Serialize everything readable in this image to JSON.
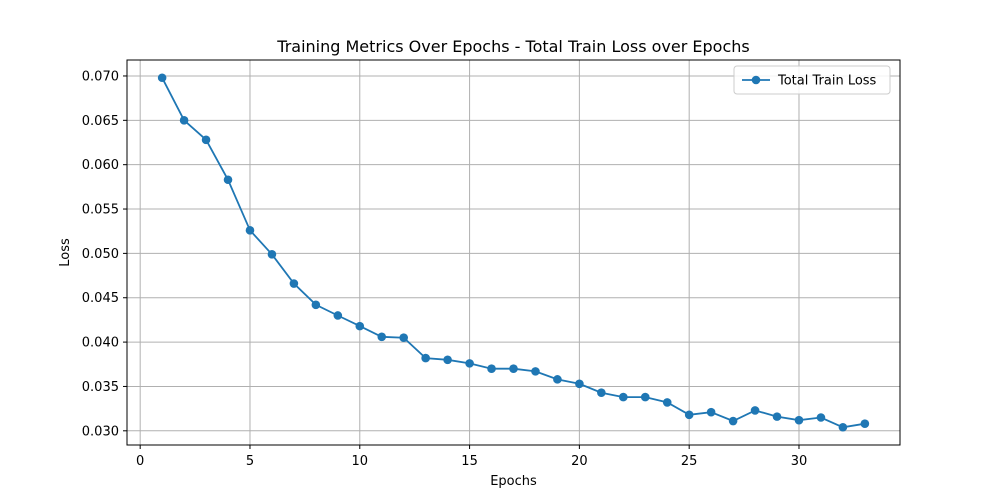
{
  "chart_data": {
    "type": "line",
    "title": "Training Metrics Over Epochs - Total Train Loss over Epochs",
    "xlabel": "Epochs",
    "ylabel": "Loss",
    "xlim": [
      -0.6,
      34.6
    ],
    "ylim": [
      0.0284,
      0.0718
    ],
    "xticks": [
      0,
      5,
      10,
      15,
      20,
      25,
      30
    ],
    "yticks": [
      0.03,
      0.035,
      0.04,
      0.045,
      0.05,
      0.055,
      0.06,
      0.065,
      0.07
    ],
    "ytick_labels": [
      "0.030",
      "0.035",
      "0.040",
      "0.045",
      "0.050",
      "0.055",
      "0.060",
      "0.065",
      "0.070"
    ],
    "grid": true,
    "legend_position": "top-right",
    "series": [
      {
        "name": "Total Train Loss",
        "color": "#1f77b4",
        "marker": "circle",
        "x": [
          1,
          2,
          3,
          4,
          5,
          6,
          7,
          8,
          9,
          10,
          11,
          12,
          13,
          14,
          15,
          16,
          17,
          18,
          19,
          20,
          21,
          22,
          23,
          24,
          25,
          26,
          27,
          28,
          29,
          30,
          31,
          32,
          33
        ],
        "values": [
          0.0698,
          0.065,
          0.0628,
          0.0583,
          0.0526,
          0.0499,
          0.0466,
          0.0442,
          0.043,
          0.0418,
          0.0406,
          0.0405,
          0.0382,
          0.038,
          0.0376,
          0.037,
          0.037,
          0.0367,
          0.0358,
          0.0353,
          0.0343,
          0.0338,
          0.0338,
          0.0332,
          0.0318,
          0.0321,
          0.0311,
          0.0323,
          0.0316,
          0.0312,
          0.0315,
          0.0304,
          0.0308
        ]
      }
    ]
  }
}
